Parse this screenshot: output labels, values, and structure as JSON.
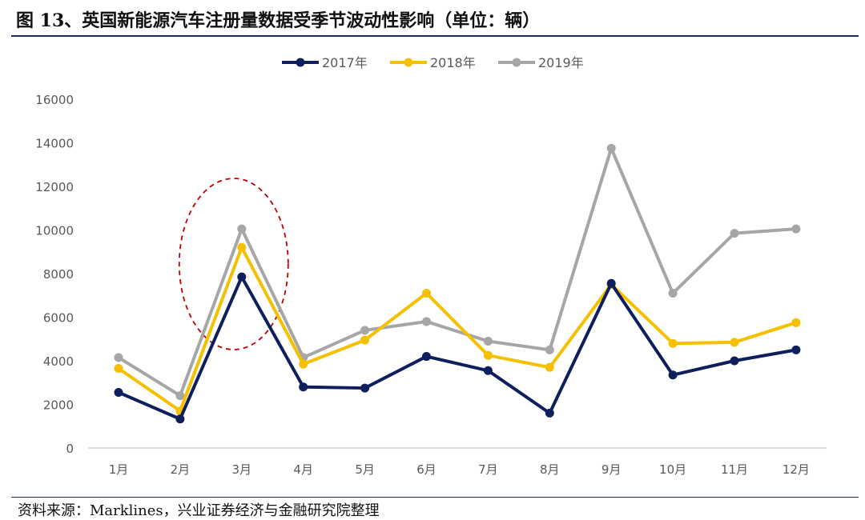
{
  "title": "图 13、英国新能源汽车注册量数据受季节波动性影响（单位：辆）",
  "source": "资料来源：Marklines，兴业证券经济与金融研究院整理",
  "chart_data": {
    "type": "line",
    "categories": [
      "1月",
      "2月",
      "3月",
      "4月",
      "5月",
      "6月",
      "7月",
      "8月",
      "9月",
      "10月",
      "11月",
      "12月"
    ],
    "ylim": [
      0,
      16000
    ],
    "yticks": [
      0,
      2000,
      4000,
      6000,
      8000,
      10000,
      12000,
      14000,
      16000
    ],
    "grid": false,
    "legend": "top",
    "series": [
      {
        "name": "2017年",
        "color": "#0d1f5c",
        "values": [
          2550,
          1330,
          7850,
          2800,
          2750,
          4200,
          3550,
          1600,
          7550,
          3350,
          4000,
          4500
        ]
      },
      {
        "name": "2018年",
        "color": "#f5c000",
        "values": [
          3650,
          1700,
          9200,
          3850,
          4950,
          7100,
          4250,
          3700,
          7500,
          4800,
          4850,
          5750
        ]
      },
      {
        "name": "2019年",
        "color": "#a6a6a6",
        "values": [
          4150,
          2400,
          10050,
          4150,
          5400,
          5800,
          4900,
          4500,
          13750,
          7100,
          9850,
          10050
        ]
      }
    ],
    "annotation": {
      "shape": "dashed-ellipse",
      "color": "#c00000",
      "category": "3月"
    }
  }
}
